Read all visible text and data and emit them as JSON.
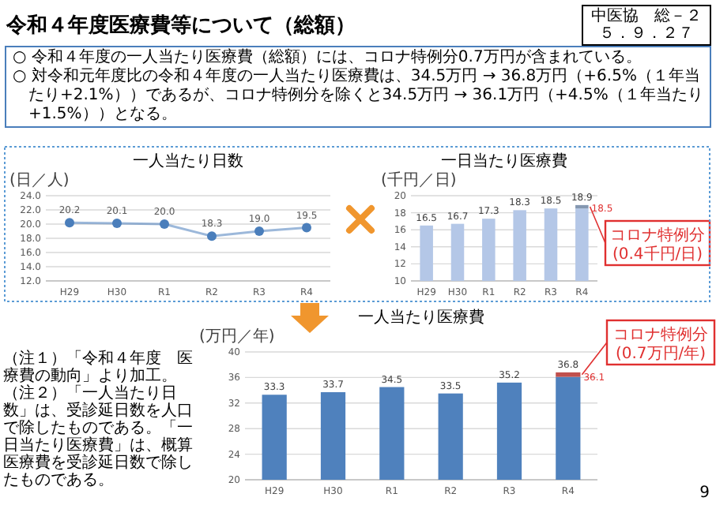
{
  "chart_data": [
    {
      "type": "other",
      "title": "令和４年度医療費等について（総額）",
      "annotations": [
        "中医協　総－２",
        "５．９．２７",
        "○ 令和４年度の一人当たり医療費（総額）には、コロナ特例分0.7万円が含まれている。",
        "○ 対令和元年度比の令和４年度の一人当たり医療費は、34.5万円 → 36.8万円（+6.5%（１年当たり+2.1%））であるが、コロナ特例分を除くと34.5万円 → 36.1万円（+4.5%（１年当たり+1.5%））となる。",
        "（注１）「令和４年度　医療費の動向」より加工。",
        "（注２）「一人当たり日数」は、受診延日数を人口で除したものである。「一日当たり医療費」は、概算医療費を受診延日数で除したものである。",
        "9"
      ]
    },
    {
      "type": "line",
      "title": "一人当たり日数",
      "ylabel": "(日／人)",
      "categories": [
        "H29",
        "H30",
        "R1",
        "R2",
        "R3",
        "R4"
      ],
      "series": [
        {
          "color": "#4a7ebb",
          "values": [
            20.2,
            20.1,
            20.0,
            18.3,
            19.0,
            19.5
          ],
          "value_labels": [
            "20.2",
            "20.1",
            "20.0",
            "18.3",
            "19.0",
            "19.5"
          ]
        }
      ],
      "ylim": [
        12,
        24
      ],
      "yticks": [
        {
          "value": 12,
          "label": "12.0"
        },
        {
          "value": 14,
          "label": "14.0"
        },
        {
          "value": 16,
          "label": "16.0"
        },
        {
          "value": 18,
          "label": "18.0"
        },
        {
          "value": 20,
          "label": "20.0"
        },
        {
          "value": 22,
          "label": "22.0"
        },
        {
          "value": 24,
          "label": "24.0"
        }
      ],
      "grid": "y",
      "marker": "circle"
    },
    {
      "type": "bar",
      "title": "一日当たり医療費",
      "ylabel": "(千円／日)",
      "categories": [
        "H29",
        "H30",
        "R1",
        "R2",
        "R3",
        "R4"
      ],
      "series": [
        {
          "color": "#b4c7e7",
          "values": [
            16.5,
            16.7,
            17.3,
            18.3,
            18.5,
            18.5
          ],
          "value_labels": [
            "16.5",
            "16.7",
            "17.3",
            "18.3",
            "18.5",
            null
          ]
        },
        {
          "color": "#8497b0",
          "values": [
            null,
            null,
            null,
            null,
            null,
            0.4
          ],
          "base": [
            null,
            null,
            null,
            null,
            null,
            18.5
          ],
          "value_labels": [
            null,
            null,
            null,
            null,
            null,
            "18.9"
          ]
        }
      ],
      "ylim": [
        10,
        20
      ],
      "yticks": [
        10,
        12,
        14,
        16,
        18,
        20
      ],
      "grid": "y",
      "annotations": [
        {
          "text": "18.5",
          "x": "R4",
          "y": 18.5
        },
        {
          "text": "コロナ特例分\n(0.4千円/日)",
          "x": "R4",
          "y": 18.7
        }
      ]
    },
    {
      "type": "bar",
      "title": "一人当たり医療費",
      "ylabel": "(万円／年)",
      "categories": [
        "H29",
        "H30",
        "R1",
        "R2",
        "R3",
        "R4"
      ],
      "series": [
        {
          "color": "#4f81bd",
          "values": [
            33.3,
            33.7,
            34.5,
            33.5,
            35.2,
            36.1
          ],
          "value_labels": [
            "33.3",
            "33.7",
            "34.5",
            "33.5",
            "35.2",
            null
          ]
        },
        {
          "color": "#c0504d",
          "values": [
            null,
            null,
            null,
            null,
            null,
            0.7
          ],
          "base": [
            null,
            null,
            null,
            null,
            null,
            36.1
          ],
          "value_labels": [
            null,
            null,
            null,
            null,
            null,
            "36.8"
          ]
        }
      ],
      "ylim": [
        20,
        40
      ],
      "yticks": [
        20,
        24,
        28,
        32,
        36,
        40
      ],
      "grid": "y",
      "annotations": [
        {
          "text": "36.1",
          "x": "R4",
          "y": 36.1
        },
        {
          "text": "コロナ特例分\n(0.7万円/年)",
          "x": "R4",
          "y": 36.45
        }
      ]
    }
  ]
}
